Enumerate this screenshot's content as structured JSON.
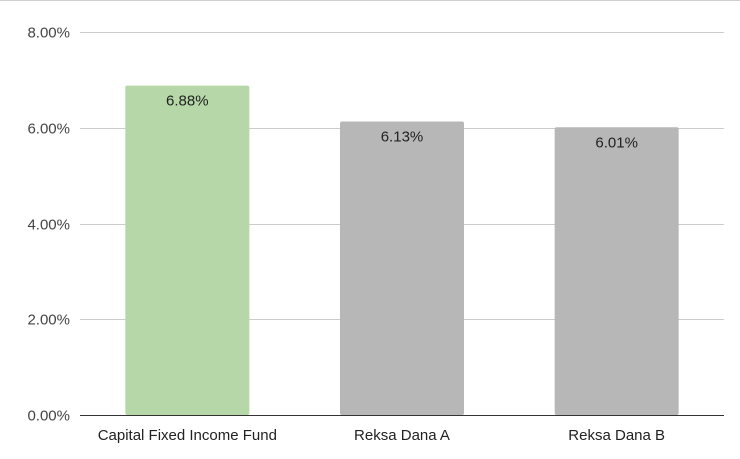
{
  "chart_data": {
    "type": "bar",
    "categories": [
      "Capital Fixed Income Fund",
      "Reksa Dana A",
      "Reksa Dana B"
    ],
    "values": [
      6.88,
      6.13,
      6.01
    ],
    "data_labels": [
      "6.88%",
      "6.13%",
      "6.01%"
    ],
    "bar_colors": [
      "#b6d7a8",
      "#b7b7b7",
      "#b7b7b7"
    ],
    "ylim": [
      0,
      8
    ],
    "yticks": [
      0,
      2,
      4,
      6,
      8
    ],
    "ytick_labels": [
      "0.00%",
      "2.00%",
      "4.00%",
      "6.00%",
      "8.00%"
    ],
    "grid": true,
    "title": "",
    "xlabel": "",
    "ylabel": ""
  }
}
